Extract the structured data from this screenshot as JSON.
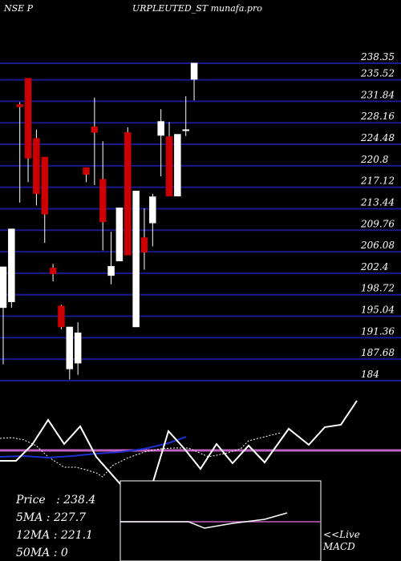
{
  "header": {
    "left": "NSE P",
    "right": "URPLEUTED_ST munafa.pro"
  },
  "colors": {
    "background": "#000000",
    "grid": "#1a1a8c",
    "bull": "#ffffff",
    "bear": "#cc0000",
    "wick": "#ffffff",
    "ma_short": "#1f2fd0",
    "indicator": "#ffffff",
    "signal": "#c060c0"
  },
  "chart_data": {
    "type": "candlestick",
    "title": "",
    "y_ticks": [
      238.35,
      235.52,
      231.84,
      228.16,
      224.48,
      220.8,
      217.12,
      213.44,
      209.76,
      206.08,
      202.4,
      198.72,
      195.04,
      191.36,
      187.68,
      184
    ],
    "ylim": [
      184,
      240
    ],
    "candles": [
      {
        "o": 196.5,
        "h": 203.5,
        "l": 186.8,
        "c": 203.5
      },
      {
        "o": 197.5,
        "h": 210.0,
        "l": 196.5,
        "c": 210.0
      },
      {
        "o": 231.3,
        "h": 231.7,
        "l": 214.5,
        "c": 230.9
      },
      {
        "o": 235.8,
        "h": 235.8,
        "l": 218.0,
        "c": 222.1
      },
      {
        "o": 225.5,
        "h": 227.0,
        "l": 214.0,
        "c": 216.0
      },
      {
        "o": 222.3,
        "h": 222.3,
        "l": 207.6,
        "c": 212.5
      },
      {
        "o": 203.3,
        "h": 204.0,
        "l": 201.0,
        "c": 202.3
      },
      {
        "o": 196.8,
        "h": 197.0,
        "l": 192.8,
        "c": 193.2
      },
      {
        "o": 186.0,
        "h": 193.2,
        "l": 184.2,
        "c": 193.2
      },
      {
        "o": 187.0,
        "h": 194.0,
        "l": 185.0,
        "c": 192.2
      },
      {
        "o": 220.5,
        "h": 220.5,
        "l": 218.0,
        "c": 219.3
      },
      {
        "o": 227.5,
        "h": 232.5,
        "l": 217.5,
        "c": 226.5
      },
      {
        "o": 218.5,
        "h": 225.0,
        "l": 206.3,
        "c": 211.2
      },
      {
        "o": 202.0,
        "h": 209.5,
        "l": 200.5,
        "c": 203.6
      },
      {
        "o": 204.5,
        "h": 213.6,
        "l": 204.5,
        "c": 213.6
      },
      {
        "o": 226.5,
        "h": 227.4,
        "l": 205.5,
        "c": 205.5
      },
      {
        "o": 193.2,
        "h": 216.5,
        "l": 193.2,
        "c": 216.5
      },
      {
        "o": 208.5,
        "h": 213.5,
        "l": 203.0,
        "c": 206.0
      },
      {
        "o": 211.0,
        "h": 216.0,
        "l": 207.0,
        "c": 215.5
      },
      {
        "o": 226.0,
        "h": 230.5,
        "l": 219.0,
        "c": 228.4
      },
      {
        "o": 225.8,
        "h": 228.3,
        "l": 215.6,
        "c": 215.6
      },
      {
        "o": 215.6,
        "h": 226.2,
        "l": 215.6,
        "c": 226.2
      },
      {
        "o": 227.0,
        "h": 232.7,
        "l": 225.9,
        "c": 227.0
      },
      {
        "o": 235.6,
        "h": 238.4,
        "l": 232.0,
        "c": 238.4
      }
    ],
    "indicator_lines": {
      "white_line": [
        [
          0,
          575
        ],
        [
          20,
          575
        ],
        [
          40,
          555
        ],
        [
          60,
          524
        ],
        [
          80,
          554
        ],
        [
          100,
          532
        ],
        [
          120,
          570
        ],
        [
          150,
          604
        ],
        [
          190,
          604
        ],
        [
          210,
          538
        ],
        [
          230,
          560
        ],
        [
          250,
          585
        ],
        [
          270,
          554
        ],
        [
          290,
          578
        ],
        [
          310,
          556
        ],
        [
          330,
          577
        ],
        [
          360,
          535
        ],
        [
          385,
          555
        ],
        [
          405,
          533
        ],
        [
          425,
          530
        ],
        [
          445,
          500
        ]
      ],
      "blue_ma": [
        [
          0,
          570
        ],
        [
          30,
          569
        ],
        [
          60,
          571
        ],
        [
          90,
          569
        ],
        [
          120,
          566
        ],
        [
          150,
          564
        ],
        [
          180,
          560
        ],
        [
          210,
          553
        ],
        [
          232,
          545
        ]
      ],
      "dashed_line": [
        [
          0,
          547
        ],
        [
          15,
          546
        ],
        [
          30,
          549
        ],
        [
          45,
          556
        ],
        [
          60,
          570
        ],
        [
          80,
          583
        ],
        [
          95,
          583
        ],
        [
          110,
          587
        ],
        [
          120,
          590
        ],
        [
          128,
          595
        ],
        [
          140,
          581
        ],
        [
          160,
          571
        ],
        [
          180,
          564
        ],
        [
          200,
          560
        ],
        [
          215,
          559
        ],
        [
          235,
          559
        ],
        [
          260,
          570
        ],
        [
          280,
          566
        ],
        [
          300,
          560
        ],
        [
          310,
          550
        ],
        [
          330,
          545
        ],
        [
          350,
          540
        ]
      ],
      "signal_y": 562
    },
    "macd_lines": {
      "line": [
        [
          150,
          651
        ],
        [
          235,
          651
        ],
        [
          255,
          659
        ],
        [
          290,
          653
        ],
        [
          330,
          648
        ],
        [
          358,
          640
        ]
      ],
      "signal_y": 651
    }
  },
  "info": {
    "price": "Price   : 238.4",
    "ma5": "5MA : 227.7",
    "ma12": "12MA : 221.1",
    "ma50": "50MA : 0"
  },
  "footer": {
    "live": "<<Live",
    "macd": "MACD"
  }
}
